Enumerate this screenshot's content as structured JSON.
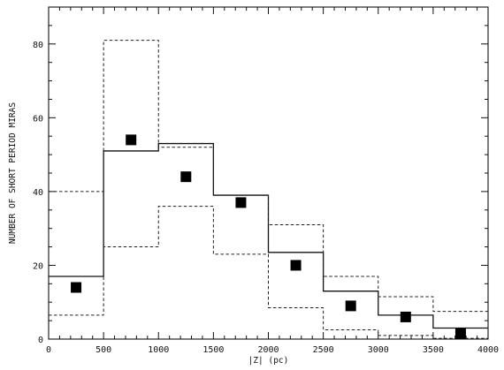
{
  "chart_data": {
    "type": "line",
    "title": "",
    "xlabel": "|Z| (pc)",
    "ylabel": "NUMBER OF SHORT PERIOD MIRAS",
    "xlim": [
      0,
      4000
    ],
    "ylim": [
      0,
      90
    ],
    "x_ticks": [
      0,
      500,
      1000,
      1500,
      2000,
      2500,
      3000,
      3500,
      4000
    ],
    "y_ticks": [
      0,
      20,
      40,
      60,
      80
    ],
    "grid": false,
    "legend": "none",
    "bin_edges": [
      0,
      500,
      1000,
      1500,
      2000,
      2500,
      3000,
      3500,
      4000
    ],
    "series": [
      {
        "style": "solid-step",
        "values": [
          17,
          51,
          53,
          39,
          23.5,
          13,
          6.5,
          3
        ]
      },
      {
        "style": "dashed-step-upper",
        "values": [
          40,
          81,
          52,
          39,
          31,
          17,
          11.5,
          7.5
        ]
      },
      {
        "style": "dashed-step-lower",
        "values": [
          6.5,
          25,
          36,
          23,
          8.5,
          2.5,
          1,
          0.2
        ]
      },
      {
        "style": "filled-square-markers",
        "x": [
          250,
          750,
          1250,
          1750,
          2250,
          2750,
          3250,
          3750
        ],
        "values": [
          14,
          54,
          44,
          37,
          20,
          9,
          6,
          1.5
        ]
      }
    ]
  }
}
